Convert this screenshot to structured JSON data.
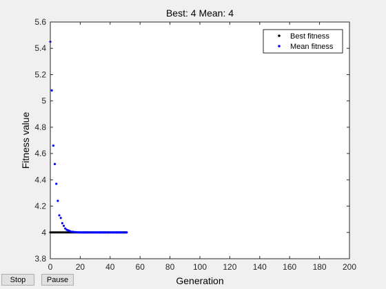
{
  "chart_data": {
    "type": "scatter",
    "title": "Best: 4 Mean: 4",
    "xlabel": "Generation",
    "ylabel": "Fitness value",
    "xlim": [
      0,
      200
    ],
    "ylim": [
      3.8,
      5.6
    ],
    "xticks": [
      0,
      20,
      40,
      60,
      80,
      100,
      120,
      140,
      160,
      180,
      200
    ],
    "yticks": [
      3.8,
      4,
      4.2,
      4.4,
      4.6,
      4.8,
      5,
      5.2,
      5.4,
      5.6
    ],
    "grid": false,
    "legend_position": "top-right",
    "series": [
      {
        "name": "Best fitness",
        "color": "#000000",
        "x": [
          0,
          1,
          2,
          3,
          4,
          5,
          6,
          7,
          8,
          9,
          10,
          11,
          12,
          13,
          14,
          15,
          16,
          17,
          18,
          19,
          20,
          21,
          22,
          23,
          24,
          25,
          26,
          27,
          28,
          29,
          30,
          31,
          32,
          33,
          34,
          35,
          36,
          37,
          38,
          39,
          40,
          41,
          42,
          43,
          44,
          45,
          46,
          47,
          48,
          49,
          50,
          51
        ],
        "y": [
          4,
          4,
          4,
          4,
          4,
          4,
          4,
          4,
          4,
          4,
          4,
          4,
          4,
          4,
          4,
          4,
          4,
          4,
          4,
          4,
          4,
          4,
          4,
          4,
          4,
          4,
          4,
          4,
          4,
          4,
          4,
          4,
          4,
          4,
          4,
          4,
          4,
          4,
          4,
          4,
          4,
          4,
          4,
          4,
          4,
          4,
          4,
          4,
          4,
          4,
          4,
          4
        ]
      },
      {
        "name": "Mean fitness",
        "color": "#0000ff",
        "x": [
          0,
          1,
          2,
          3,
          4,
          5,
          6,
          7,
          8,
          9,
          10,
          11,
          12,
          13,
          14,
          15,
          16,
          17,
          18,
          19,
          20,
          21,
          22,
          23,
          24,
          25,
          26,
          27,
          28,
          29,
          30,
          31,
          32,
          33,
          34,
          35,
          36,
          37,
          38,
          39,
          40,
          41,
          42,
          43,
          44,
          45,
          46,
          47,
          48,
          49,
          50,
          51
        ],
        "y": [
          5.45,
          5.08,
          4.66,
          4.52,
          4.37,
          4.24,
          4.13,
          4.11,
          4.07,
          4.05,
          4.03,
          4.02,
          4.015,
          4.01,
          4.005,
          4.005,
          4.003,
          4.002,
          4.001,
          4.001,
          4,
          4,
          4,
          4,
          4,
          4,
          4,
          4,
          4,
          4,
          4,
          4,
          4,
          4,
          4,
          4,
          4,
          4,
          4,
          4,
          4,
          4,
          4,
          4,
          4,
          4,
          4,
          4,
          4,
          4,
          4,
          4
        ]
      }
    ]
  },
  "controls": {
    "stop_label": "Stop",
    "pause_label": "Pause"
  }
}
